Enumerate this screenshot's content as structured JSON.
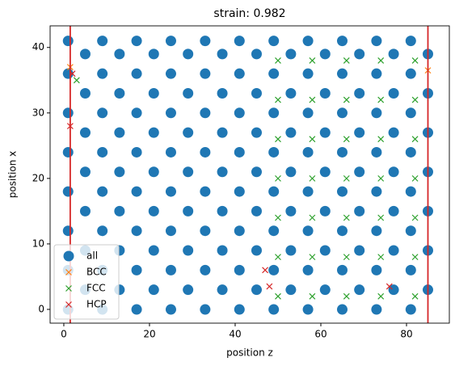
{
  "chart_data": {
    "type": "scatter",
    "title": "strain: 0.982",
    "xlabel": "position z",
    "ylabel": "position x",
    "xlim": [
      -3.2,
      90
    ],
    "ylim": [
      -2.1,
      43.3
    ],
    "xticks": [
      0,
      20,
      40,
      60,
      80
    ],
    "yticks": [
      0,
      10,
      20,
      30,
      40
    ],
    "legend": "lower left",
    "vlines": [
      {
        "value": 1.5,
        "color": "#d62728"
      },
      {
        "value": 85,
        "color": "#d62728"
      }
    ],
    "series": [
      {
        "name": "all",
        "color": "#1f77b4",
        "marker": "o",
        "x": [
          1,
          9,
          17,
          25,
          33,
          41,
          49,
          57,
          65,
          73,
          81,
          5,
          13,
          21,
          29,
          37,
          45,
          53,
          61,
          69,
          77,
          85,
          1,
          9,
          17,
          25,
          33,
          41,
          49,
          57,
          65,
          73,
          81,
          5,
          13,
          21,
          29,
          37,
          45,
          53,
          61,
          69,
          77,
          85,
          1,
          9,
          17,
          25,
          33,
          41,
          49,
          57,
          65,
          73,
          81,
          5,
          13,
          21,
          29,
          37,
          45,
          53,
          61,
          69,
          77,
          85,
          1,
          9,
          17,
          25,
          33,
          41,
          49,
          57,
          65,
          73,
          81,
          5,
          13,
          21,
          29,
          37,
          45,
          53,
          61,
          69,
          77,
          85,
          1,
          9,
          17,
          25,
          33,
          41,
          49,
          57,
          65,
          73,
          81,
          5,
          13,
          21,
          29,
          37,
          45,
          53,
          61,
          69,
          77,
          85,
          1,
          9,
          17,
          25,
          33,
          41,
          49,
          57,
          65,
          73,
          81,
          5,
          13,
          21,
          29,
          37,
          45,
          53,
          61,
          69,
          77,
          85,
          1,
          9,
          17,
          25,
          33,
          41,
          49,
          57,
          65,
          73,
          81,
          5,
          13,
          21,
          29,
          37,
          45,
          53,
          61,
          69,
          77,
          85,
          1,
          9,
          17,
          25,
          33,
          41,
          49,
          57,
          65,
          73,
          81
        ],
        "y": [
          0,
          0,
          0,
          0,
          0,
          0,
          0,
          0,
          0,
          0,
          0,
          3,
          3,
          3,
          3,
          3,
          3,
          3,
          3,
          3,
          3,
          3,
          6,
          6,
          6,
          6,
          6,
          6,
          6,
          6,
          6,
          6,
          6,
          9,
          9,
          9,
          9,
          9,
          9,
          9,
          9,
          9,
          9,
          9,
          12,
          12,
          12,
          12,
          12,
          12,
          12,
          12,
          12,
          12,
          12,
          15,
          15,
          15,
          15,
          15,
          15,
          15,
          15,
          15,
          15,
          15,
          18,
          18,
          18,
          18,
          18,
          18,
          18,
          18,
          18,
          18,
          18,
          21,
          21,
          21,
          21,
          21,
          21,
          21,
          21,
          21,
          21,
          21,
          24,
          24,
          24,
          24,
          24,
          24,
          24,
          24,
          24,
          24,
          24,
          27,
          27,
          27,
          27,
          27,
          27,
          27,
          27,
          27,
          27,
          27,
          30,
          30,
          30,
          30,
          30,
          30,
          30,
          30,
          30,
          30,
          30,
          33,
          33,
          33,
          33,
          33,
          33,
          33,
          33,
          33,
          33,
          33,
          36,
          36,
          36,
          36,
          36,
          36,
          36,
          36,
          36,
          36,
          36,
          39,
          39,
          39,
          39,
          39,
          39,
          39,
          39,
          39,
          39,
          39,
          41,
          41,
          41,
          41,
          41,
          41,
          41,
          41,
          41,
          41,
          41
        ]
      },
      {
        "name": "BCC",
        "color": "#ff7f0e",
        "marker": "x",
        "x": [
          1.5,
          85
        ],
        "y": [
          37,
          36.5
        ]
      },
      {
        "name": "FCC",
        "color": "#2ca02c",
        "marker": "x",
        "x": [
          50,
          58,
          66,
          74,
          82,
          50,
          58,
          66,
          74,
          82,
          50,
          58,
          66,
          74,
          82,
          50,
          58,
          66,
          74,
          82,
          50,
          58,
          66,
          74,
          82,
          50,
          58,
          66,
          74,
          82,
          50,
          58,
          66,
          74,
          82,
          3
        ],
        "y": [
          2,
          2,
          2,
          2,
          2,
          8,
          8,
          8,
          8,
          8,
          14,
          14,
          14,
          14,
          14,
          20,
          20,
          20,
          20,
          20,
          26,
          26,
          26,
          26,
          26,
          32,
          32,
          32,
          32,
          32,
          38,
          38,
          38,
          38,
          38,
          35
        ]
      },
      {
        "name": "HCP",
        "color": "#d62728",
        "marker": "x",
        "x": [
          1.5,
          47,
          48,
          76,
          2
        ],
        "y": [
          28,
          6,
          3.5,
          3.5,
          36
        ]
      }
    ]
  }
}
